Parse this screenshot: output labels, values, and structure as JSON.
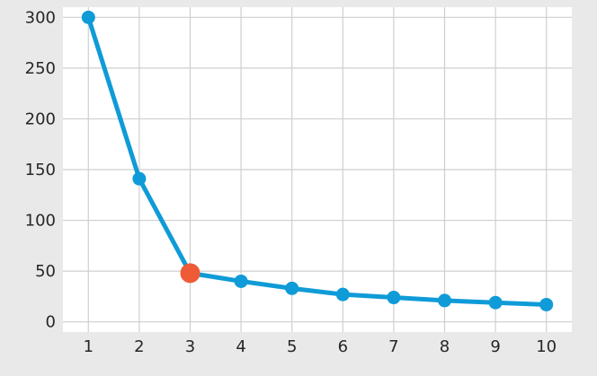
{
  "chart_data": {
    "type": "line",
    "title": "",
    "xlabel": "",
    "ylabel": "",
    "x": [
      1,
      2,
      3,
      4,
      5,
      6,
      7,
      8,
      9,
      10
    ],
    "series": [
      {
        "values": [
          300,
          141,
          48,
          40,
          33,
          27,
          24,
          21,
          19,
          17
        ],
        "color": "#0f9bd7"
      }
    ],
    "highlight": {
      "x": 3,
      "y": 48,
      "color": "#ef5b37"
    },
    "xlim": [
      0.5,
      10.5
    ],
    "ylim": [
      -10,
      310
    ],
    "xticks": [
      1,
      2,
      3,
      4,
      5,
      6,
      7,
      8,
      9,
      10
    ],
    "yticks": [
      0,
      50,
      100,
      150,
      200,
      250,
      300
    ],
    "grid": true,
    "background": "#e9e9e9",
    "plot_background": "#ffffff",
    "grid_color": "#cfcfcf"
  }
}
